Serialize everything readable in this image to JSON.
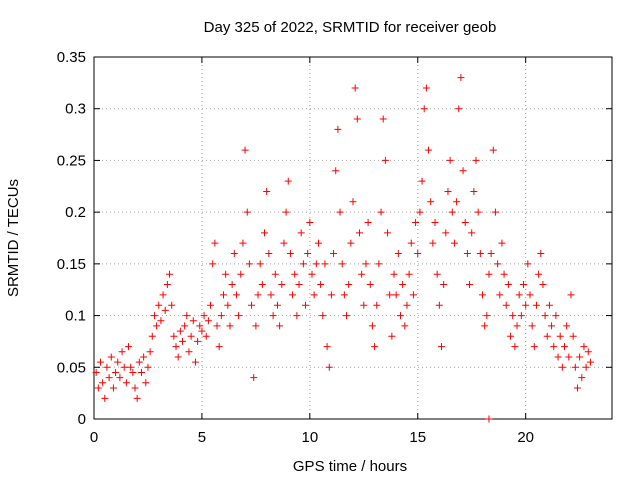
{
  "chart_data": {
    "type": "scatter",
    "title": "Day 325 of 2022, SRMTID for receiver geob",
    "xlabel": "GPS time / hours",
    "ylabel": "SRMTID / TECUs",
    "xlim": [
      0,
      24
    ],
    "ylim": [
      0,
      0.35
    ],
    "x_ticks": [
      0,
      5,
      10,
      15,
      20
    ],
    "x_tick_labels": [
      "0",
      "5",
      "10",
      "15",
      "20"
    ],
    "y_ticks": [
      0,
      0.05,
      0.1,
      0.15,
      0.2,
      0.25,
      0.3,
      0.35
    ],
    "y_tick_labels": [
      "0",
      "0.05",
      "0.1",
      "0.15",
      "0.2",
      "0.25",
      "0.3",
      "0.35"
    ],
    "grid": true,
    "marker": "+",
    "color": "#ff0000",
    "series": [
      {
        "name": "SRMTID",
        "points": [
          [
            0.1,
            0.045
          ],
          [
            0.2,
            0.03
          ],
          [
            0.3,
            0.055
          ],
          [
            0.4,
            0.035
          ],
          [
            0.5,
            0.02
          ],
          [
            0.6,
            0.05
          ],
          [
            0.7,
            0.04
          ],
          [
            0.8,
            0.06
          ],
          [
            0.9,
            0.03
          ],
          [
            1.0,
            0.045
          ],
          [
            1.1,
            0.055
          ],
          [
            1.2,
            0.04
          ],
          [
            1.3,
            0.065
          ],
          [
            1.4,
            0.05
          ],
          [
            1.5,
            0.035
          ],
          [
            1.6,
            0.07
          ],
          [
            1.7,
            0.05
          ],
          [
            1.8,
            0.045
          ],
          [
            1.9,
            0.03
          ],
          [
            2.0,
            0.02
          ],
          [
            2.1,
            0.055
          ],
          [
            2.2,
            0.045
          ],
          [
            2.3,
            0.06
          ],
          [
            2.4,
            0.035
          ],
          [
            2.5,
            0.05
          ],
          [
            2.6,
            0.065
          ],
          [
            2.7,
            0.08
          ],
          [
            2.8,
            0.1
          ],
          [
            2.9,
            0.09
          ],
          [
            3.0,
            0.11
          ],
          [
            3.1,
            0.095
          ],
          [
            3.2,
            0.12
          ],
          [
            3.3,
            0.105
          ],
          [
            3.4,
            0.13
          ],
          [
            3.5,
            0.14
          ],
          [
            3.6,
            0.11
          ],
          [
            3.7,
            0.08
          ],
          [
            3.8,
            0.07
          ],
          [
            3.9,
            0.06
          ],
          [
            4.0,
            0.085
          ],
          [
            4.1,
            0.075
          ],
          [
            4.2,
            0.09
          ],
          [
            4.3,
            0.1
          ],
          [
            4.4,
            0.065
          ],
          [
            4.5,
            0.08
          ],
          [
            4.6,
            0.095
          ],
          [
            4.7,
            0.055
          ],
          [
            4.8,
            0.075
          ],
          [
            4.9,
            0.09
          ],
          [
            5.0,
            0.085
          ],
          [
            5.1,
            0.1
          ],
          [
            5.2,
            0.08
          ],
          [
            5.3,
            0.095
          ],
          [
            5.4,
            0.11
          ],
          [
            5.5,
            0.15
          ],
          [
            5.6,
            0.17
          ],
          [
            5.7,
            0.09
          ],
          [
            5.8,
            0.07
          ],
          [
            5.9,
            0.1
          ],
          [
            6.0,
            0.12
          ],
          [
            6.1,
            0.14
          ],
          [
            6.2,
            0.11
          ],
          [
            6.3,
            0.09
          ],
          [
            6.4,
            0.13
          ],
          [
            6.5,
            0.16
          ],
          [
            6.6,
            0.12
          ],
          [
            6.7,
            0.1
          ],
          [
            6.8,
            0.14
          ],
          [
            6.9,
            0.17
          ],
          [
            7.0,
            0.26
          ],
          [
            7.1,
            0.2
          ],
          [
            7.2,
            0.15
          ],
          [
            7.3,
            0.11
          ],
          [
            7.4,
            0.04
          ],
          [
            7.5,
            0.09
          ],
          [
            7.6,
            0.12
          ],
          [
            7.7,
            0.15
          ],
          [
            7.8,
            0.13
          ],
          [
            7.9,
            0.18
          ],
          [
            8.0,
            0.22
          ],
          [
            8.1,
            0.16
          ],
          [
            8.2,
            0.12
          ],
          [
            8.3,
            0.1
          ],
          [
            8.4,
            0.14
          ],
          [
            8.5,
            0.11
          ],
          [
            8.6,
            0.09
          ],
          [
            8.7,
            0.13
          ],
          [
            8.8,
            0.17
          ],
          [
            8.9,
            0.2
          ],
          [
            9.0,
            0.23
          ],
          [
            9.1,
            0.16
          ],
          [
            9.2,
            0.12
          ],
          [
            9.3,
            0.14
          ],
          [
            9.4,
            0.1
          ],
          [
            9.5,
            0.13
          ],
          [
            9.6,
            0.18
          ],
          [
            9.7,
            0.15
          ],
          [
            9.8,
            0.11
          ],
          [
            9.9,
            0.16
          ],
          [
            10.0,
            0.19
          ],
          [
            10.1,
            0.14
          ],
          [
            10.2,
            0.12
          ],
          [
            10.3,
            0.15
          ],
          [
            10.4,
            0.17
          ],
          [
            10.5,
            0.13
          ],
          [
            10.6,
            0.1
          ],
          [
            10.7,
            0.15
          ],
          [
            10.8,
            0.07
          ],
          [
            10.9,
            0.05
          ],
          [
            11.0,
            0.12
          ],
          [
            11.1,
            0.16
          ],
          [
            11.2,
            0.24
          ],
          [
            11.3,
            0.28
          ],
          [
            11.4,
            0.2
          ],
          [
            11.5,
            0.15
          ],
          [
            11.6,
            0.12
          ],
          [
            11.7,
            0.1
          ],
          [
            11.8,
            0.13
          ],
          [
            11.9,
            0.17
          ],
          [
            12.0,
            0.21
          ],
          [
            12.1,
            0.32
          ],
          [
            12.2,
            0.29
          ],
          [
            12.3,
            0.18
          ],
          [
            12.4,
            0.14
          ],
          [
            12.5,
            0.11
          ],
          [
            12.6,
            0.15
          ],
          [
            12.7,
            0.19
          ],
          [
            12.8,
            0.13
          ],
          [
            12.9,
            0.09
          ],
          [
            13.0,
            0.07
          ],
          [
            13.1,
            0.11
          ],
          [
            13.2,
            0.15
          ],
          [
            13.3,
            0.2
          ],
          [
            13.4,
            0.29
          ],
          [
            13.5,
            0.25
          ],
          [
            13.6,
            0.18
          ],
          [
            13.7,
            0.12
          ],
          [
            13.8,
            0.08
          ],
          [
            13.9,
            0.14
          ],
          [
            14.0,
            0.12
          ],
          [
            14.1,
            0.16
          ],
          [
            14.2,
            0.1
          ],
          [
            14.3,
            0.13
          ],
          [
            14.4,
            0.09
          ],
          [
            14.5,
            0.11
          ],
          [
            14.6,
            0.14
          ],
          [
            14.7,
            0.17
          ],
          [
            14.8,
            0.12
          ],
          [
            14.9,
            0.19
          ],
          [
            15.0,
            0.16
          ],
          [
            15.1,
            0.2
          ],
          [
            15.2,
            0.23
          ],
          [
            15.3,
            0.3
          ],
          [
            15.4,
            0.32
          ],
          [
            15.5,
            0.26
          ],
          [
            15.6,
            0.21
          ],
          [
            15.7,
            0.17
          ],
          [
            15.8,
            0.19
          ],
          [
            15.9,
            0.14
          ],
          [
            16.0,
            0.11
          ],
          [
            16.1,
            0.07
          ],
          [
            16.2,
            0.13
          ],
          [
            16.3,
            0.18
          ],
          [
            16.4,
            0.22
          ],
          [
            16.5,
            0.25
          ],
          [
            16.6,
            0.2
          ],
          [
            16.7,
            0.17
          ],
          [
            16.8,
            0.21
          ],
          [
            16.9,
            0.3
          ],
          [
            17.0,
            0.33
          ],
          [
            17.1,
            0.24
          ],
          [
            17.2,
            0.19
          ],
          [
            17.3,
            0.16
          ],
          [
            17.4,
            0.13
          ],
          [
            17.5,
            0.18
          ],
          [
            17.6,
            0.22
          ],
          [
            17.7,
            0.25
          ],
          [
            17.8,
            0.2
          ],
          [
            17.9,
            0.16
          ],
          [
            18.0,
            0.12
          ],
          [
            18.1,
            0.09
          ],
          [
            18.2,
            0.1
          ],
          [
            18.3,
            0.14
          ],
          [
            18.4,
            0.16
          ],
          [
            18.5,
            0.26
          ],
          [
            18.6,
            0.2
          ],
          [
            18.7,
            0.15
          ],
          [
            18.8,
            0.12
          ],
          [
            18.9,
            0.17
          ],
          [
            19.0,
            0.14
          ],
          [
            19.1,
            0.11
          ],
          [
            19.2,
            0.13
          ],
          [
            19.3,
            0.08
          ],
          [
            19.4,
            0.1
          ],
          [
            19.5,
            0.07
          ],
          [
            19.6,
            0.09
          ],
          [
            19.7,
            0.12
          ],
          [
            19.8,
            0.1
          ],
          [
            19.9,
            0.13
          ],
          [
            20.0,
            0.11
          ],
          [
            20.1,
            0.15
          ],
          [
            20.2,
            0.12
          ],
          [
            20.3,
            0.09
          ],
          [
            20.4,
            0.07
          ],
          [
            20.5,
            0.11
          ],
          [
            20.6,
            0.14
          ],
          [
            20.7,
            0.16
          ],
          [
            20.8,
            0.13
          ],
          [
            20.9,
            0.1
          ],
          [
            21.0,
            0.08
          ],
          [
            21.1,
            0.11
          ],
          [
            21.2,
            0.09
          ],
          [
            21.3,
            0.07
          ],
          [
            21.4,
            0.1
          ],
          [
            21.5,
            0.06
          ],
          [
            21.6,
            0.08
          ],
          [
            21.7,
            0.05
          ],
          [
            21.8,
            0.07
          ],
          [
            21.9,
            0.09
          ],
          [
            22.0,
            0.06
          ],
          [
            22.1,
            0.12
          ],
          [
            22.2,
            0.08
          ],
          [
            22.3,
            0.05
          ],
          [
            22.4,
            0.03
          ],
          [
            22.5,
            0.06
          ],
          [
            22.6,
            0.04
          ],
          [
            22.7,
            0.07
          ],
          [
            22.8,
            0.05
          ],
          [
            22.9,
            0.065
          ],
          [
            23.0,
            0.055
          ],
          [
            18.3,
            0.0
          ]
        ]
      }
    ]
  }
}
